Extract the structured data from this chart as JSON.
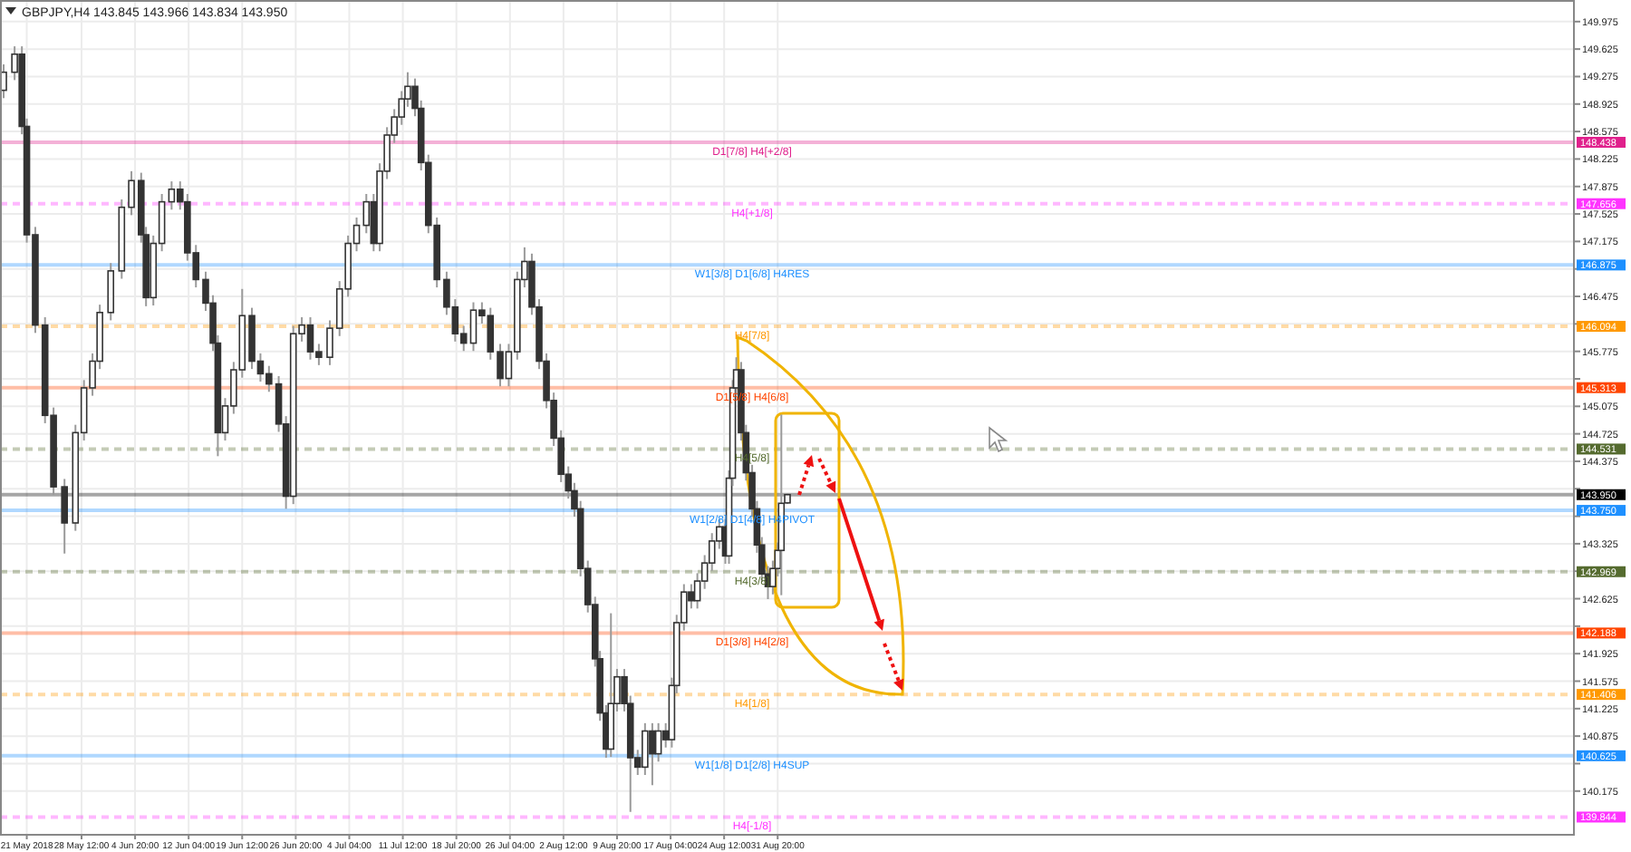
{
  "chart_data": {
    "type": "candlestick",
    "title": "GBPJPY,H4  143.845 143.966 143.834 143.950",
    "color": "#333333",
    "grid": true,
    "xlim": [
      "2018-05-17T08:00",
      "2018-12-19T00:00"
    ],
    "ylim": [
      139.63,
      150.25
    ],
    "xticks": [
      {
        "value": "2018-05-21T00:00",
        "label": "21 May 2018"
      },
      {
        "value": "2018-05-28T12:00",
        "label": "28 May 12:00"
      },
      {
        "value": "2018-06-04T20:00",
        "label": "4 Jun 20:00"
      },
      {
        "value": "2018-06-12T04:00",
        "label": "12 Jun 04:00"
      },
      {
        "value": "2018-06-19T12:00",
        "label": "19 Jun 12:00"
      },
      {
        "value": "2018-06-26T20:00",
        "label": "26 Jun 20:00"
      },
      {
        "value": "2018-07-04T04:00",
        "label": "4 Jul 04:00"
      },
      {
        "value": "2018-07-11T12:00",
        "label": "11 Jul 12:00"
      },
      {
        "value": "2018-07-18T20:00",
        "label": "18 Jul 20:00"
      },
      {
        "value": "2018-07-26T04:00",
        "label": "26 Jul 04:00"
      },
      {
        "value": "2018-08-02T12:00",
        "label": "2 Aug 12:00"
      },
      {
        "value": "2018-08-09T20:00",
        "label": "9 Aug 20:00"
      },
      {
        "value": "2018-08-17T04:00",
        "label": "17 Aug 04:00"
      },
      {
        "value": "2018-08-24T12:00",
        "label": "24 Aug 12:00"
      },
      {
        "value": "2018-08-31T20:00",
        "label": "31 Aug 20:00"
      }
    ],
    "yticks": [
      140.175,
      {
        "value": 140.525,
        "label": null
      },
      140.875,
      141.225,
      141.575,
      141.925,
      {
        "value": 142.275,
        "label": null
      },
      142.625,
      {
        "value": 142.975,
        "label": null
      },
      143.325,
      {
        "value": 143.675,
        "label": null
      },
      {
        "value": 144.025,
        "label": null
      },
      144.375,
      144.725,
      145.075,
      {
        "value": 145.425,
        "label": null
      },
      145.775,
      {
        "value": 146.125,
        "label": null
      },
      146.475,
      {
        "value": 146.825,
        "label": null
      },
      147.175,
      147.525,
      147.875,
      148.225,
      148.575,
      148.925,
      149.275,
      149.625,
      149.975
    ],
    "annotations": [
      "148.438",
      "147.656",
      "146.875",
      "146.094",
      "145.313",
      "144.531",
      "143.950",
      "143.750",
      "142.969",
      "142.188",
      "141.406",
      "140.625",
      "139.844"
    ],
    "x": [
      "2018-05-17T20:00",
      "2018-05-19T08:00",
      "2018-05-20T08:00",
      "2018-05-21T00:00",
      "2018-05-22T04:00",
      "2018-05-23T12:00",
      "2018-05-24T16:00",
      "2018-05-26T04:00",
      "2018-05-27T16:00",
      "2018-05-28T20:00",
      "2018-05-30T00:00",
      "2018-05-31T00:00",
      "2018-06-01T12:00",
      "2018-06-03T00:00",
      "2018-06-04T08:00",
      "2018-06-05T16:00",
      "2018-06-06T08:00",
      "2018-06-07T08:00",
      "2018-06-08T12:00",
      "2018-06-09T20:00",
      "2018-06-11T00:00",
      "2018-06-12T00:00",
      "2018-06-13T04:00",
      "2018-06-14T12:00",
      "2018-06-15T12:00",
      "2018-06-16T04:00",
      "2018-06-17T04:00",
      "2018-06-18T08:00",
      "2018-06-19T12:00",
      "2018-06-20T20:00",
      "2018-06-22T00:00",
      "2018-06-23T04:00",
      "2018-06-24T12:00",
      "2018-06-25T12:00",
      "2018-06-26T12:00",
      "2018-06-27T16:00",
      "2018-06-28T20:00",
      "2018-06-30T00:00",
      "2018-07-01T12:00",
      "2018-07-02T20:00",
      "2018-07-04T00:00",
      "2018-07-05T04:00",
      "2018-07-06T12:00",
      "2018-07-07T12:00",
      "2018-07-08T08:00",
      "2018-07-09T08:00",
      "2018-07-10T08:00",
      "2018-07-11T08:00",
      "2018-07-12T04:00",
      "2018-07-13T04:00",
      "2018-07-14T00:00",
      "2018-07-15T00:00",
      "2018-07-16T04:00",
      "2018-07-17T12:00",
      "2018-07-18T16:00",
      "2018-07-19T20:00",
      "2018-07-21T04:00",
      "2018-07-22T08:00",
      "2018-07-23T12:00",
      "2018-07-24T20:00",
      "2018-07-26T00:00",
      "2018-07-27T04:00",
      "2018-07-28T04:00",
      "2018-07-29T04:00",
      "2018-07-30T04:00",
      "2018-07-31T04:00",
      "2018-08-01T04:00",
      "2018-08-02T04:00",
      "2018-08-03T04:00",
      "2018-08-04T00:00",
      "2018-08-04T20:00",
      "2018-08-05T20:00",
      "2018-08-06T20:00",
      "2018-08-07T12:00",
      "2018-08-08T08:00",
      "2018-08-09T00:00",
      "2018-08-09T20:00",
      "2018-08-10T20:00",
      "2018-08-11T16:00",
      "2018-08-12T16:00",
      "2018-08-13T16:00",
      "2018-08-14T16:00",
      "2018-08-15T12:00",
      "2018-08-16T12:00",
      "2018-08-17T08:00",
      "2018-08-18T00:00",
      "2018-08-19T00:00",
      "2018-08-20T00:00",
      "2018-08-20T20:00",
      "2018-08-21T20:00",
      "2018-08-22T20:00",
      "2018-08-23T20:00",
      "2018-08-24T16:00",
      "2018-08-25T04:00",
      "2018-08-25T16:00",
      "2018-08-26T04:00",
      "2018-08-26T20:00",
      "2018-08-27T12:00",
      "2018-08-28T08:00",
      "2018-08-29T00:00",
      "2018-08-29T16:00",
      "2018-08-30T12:00",
      "2018-08-31T04:00",
      "2018-08-31T20:00",
      "2018-09-01T08:00",
      "2018-09-02T04:00"
    ],
    "ohlc": [
      [
        149.1,
        149.43,
        149.0,
        149.33
      ],
      [
        149.33,
        149.66,
        149.23,
        149.56
      ],
      [
        149.56,
        149.66,
        148.54,
        148.64
      ],
      [
        148.64,
        148.74,
        147.16,
        147.26
      ],
      [
        147.26,
        147.36,
        146.01,
        146.11
      ],
      [
        146.11,
        146.21,
        144.86,
        144.96
      ],
      [
        144.96,
        145.06,
        143.95,
        144.05
      ],
      [
        144.05,
        144.15,
        143.2,
        143.59
      ],
      [
        143.59,
        144.84,
        143.49,
        144.74
      ],
      [
        144.74,
        145.41,
        144.64,
        145.31
      ],
      [
        145.31,
        145.75,
        145.21,
        145.65
      ],
      [
        145.65,
        146.37,
        145.55,
        146.27
      ],
      [
        146.27,
        146.9,
        146.17,
        146.8
      ],
      [
        146.8,
        147.71,
        146.7,
        147.61
      ],
      [
        147.61,
        148.07,
        147.51,
        147.95
      ],
      [
        147.95,
        148.05,
        147.16,
        147.26
      ],
      [
        147.26,
        147.36,
        146.35,
        146.46
      ],
      [
        146.46,
        147.25,
        146.36,
        147.15
      ],
      [
        147.15,
        147.78,
        147.05,
        147.68
      ],
      [
        147.68,
        147.94,
        147.58,
        147.84
      ],
      [
        147.84,
        147.94,
        147.58,
        147.68
      ],
      [
        147.68,
        147.78,
        146.93,
        147.03
      ],
      [
        147.03,
        147.13,
        146.59,
        146.69
      ],
      [
        146.69,
        146.79,
        146.29,
        146.39
      ],
      [
        146.39,
        146.49,
        145.78,
        145.88
      ],
      [
        145.88,
        145.98,
        144.44,
        144.74
      ],
      [
        144.74,
        145.18,
        144.64,
        145.08
      ],
      [
        145.08,
        145.64,
        144.98,
        145.54
      ],
      [
        145.54,
        146.57,
        145.44,
        146.23
      ],
      [
        146.23,
        146.33,
        145.55,
        145.65
      ],
      [
        145.65,
        145.75,
        145.39,
        145.49
      ],
      [
        145.49,
        145.59,
        145.26,
        145.36
      ],
      [
        145.36,
        145.46,
        144.75,
        144.85
      ],
      [
        144.85,
        144.95,
        143.77,
        143.93
      ],
      [
        143.93,
        146.1,
        143.83,
        146.0
      ],
      [
        146.0,
        146.21,
        145.9,
        146.11
      ],
      [
        146.11,
        146.21,
        145.67,
        145.77
      ],
      [
        145.77,
        145.87,
        145.6,
        145.7
      ],
      [
        145.7,
        146.17,
        145.6,
        146.07
      ],
      [
        146.07,
        146.67,
        145.97,
        146.57
      ],
      [
        146.57,
        147.25,
        146.47,
        147.15
      ],
      [
        147.15,
        147.48,
        147.05,
        147.38
      ],
      [
        147.38,
        147.78,
        147.28,
        147.68
      ],
      [
        147.68,
        147.78,
        147.05,
        147.15
      ],
      [
        147.15,
        148.17,
        147.05,
        148.07
      ],
      [
        148.07,
        148.63,
        147.97,
        148.53
      ],
      [
        148.53,
        148.86,
        148.43,
        148.76
      ],
      [
        148.76,
        149.09,
        148.66,
        148.99
      ],
      [
        148.99,
        149.33,
        148.89,
        149.15
      ],
      [
        149.15,
        149.25,
        148.77,
        148.87
      ],
      [
        148.87,
        148.97,
        148.08,
        148.18
      ],
      [
        148.18,
        148.28,
        147.28,
        147.38
      ],
      [
        147.38,
        147.48,
        146.59,
        146.69
      ],
      [
        146.69,
        146.79,
        146.24,
        146.34
      ],
      [
        146.34,
        146.44,
        145.9,
        146.0
      ],
      [
        146.0,
        146.1,
        145.78,
        145.88
      ],
      [
        145.88,
        146.4,
        145.78,
        146.3
      ],
      [
        146.3,
        146.4,
        146.13,
        146.23
      ],
      [
        146.23,
        146.33,
        145.67,
        145.77
      ],
      [
        145.77,
        145.87,
        145.33,
        145.43
      ],
      [
        145.43,
        145.87,
        145.33,
        145.77
      ],
      [
        145.77,
        146.79,
        145.67,
        146.69
      ],
      [
        146.69,
        147.1,
        146.59,
        146.92
      ],
      [
        146.92,
        147.02,
        146.24,
        146.34
      ],
      [
        146.34,
        146.44,
        145.55,
        145.65
      ],
      [
        145.65,
        145.75,
        145.05,
        145.15
      ],
      [
        145.15,
        145.25,
        144.57,
        144.67
      ],
      [
        144.67,
        144.77,
        144.11,
        144.21
      ],
      [
        144.21,
        144.31,
        143.9,
        144.0
      ],
      [
        144.0,
        144.1,
        143.67,
        143.77
      ],
      [
        143.77,
        143.87,
        142.91,
        143.01
      ],
      [
        143.01,
        143.11,
        142.45,
        142.55
      ],
      [
        142.55,
        142.65,
        141.76,
        141.86
      ],
      [
        141.86,
        141.96,
        141.07,
        141.17
      ],
      [
        141.17,
        141.27,
        140.6,
        140.71
      ],
      [
        140.71,
        142.44,
        140.61,
        141.29
      ],
      [
        141.29,
        141.73,
        141.19,
        141.63
      ],
      [
        141.63,
        141.73,
        141.19,
        141.29
      ],
      [
        141.29,
        141.39,
        139.91,
        140.6
      ],
      [
        140.6,
        140.7,
        140.38,
        140.48
      ],
      [
        140.48,
        141.04,
        140.38,
        140.94
      ],
      [
        140.94,
        141.04,
        140.25,
        140.65
      ],
      [
        140.65,
        141.04,
        140.55,
        140.94
      ],
      [
        140.94,
        141.04,
        140.73,
        140.83
      ],
      [
        140.83,
        141.62,
        140.73,
        141.52
      ],
      [
        141.52,
        142.42,
        141.42,
        142.32
      ],
      [
        142.32,
        142.81,
        142.22,
        142.71
      ],
      [
        142.71,
        142.81,
        142.5,
        142.6
      ],
      [
        142.6,
        142.95,
        142.5,
        142.85
      ],
      [
        142.85,
        143.18,
        142.75,
        143.08
      ],
      [
        143.08,
        143.46,
        142.98,
        143.36
      ],
      [
        143.36,
        143.64,
        143.26,
        143.54
      ],
      [
        143.54,
        143.64,
        143.07,
        143.17
      ],
      [
        143.17,
        144.26,
        143.07,
        144.16
      ],
      [
        144.16,
        145.41,
        144.06,
        145.31
      ],
      [
        145.31,
        145.7,
        145.21,
        145.54
      ],
      [
        145.54,
        145.64,
        144.64,
        144.74
      ],
      [
        144.74,
        144.84,
        144.13,
        144.23
      ],
      [
        144.23,
        144.33,
        143.67,
        143.77
      ],
      [
        143.77,
        143.87,
        143.21,
        143.31
      ],
      [
        143.31,
        143.41,
        142.84,
        142.94
      ],
      [
        142.94,
        143.04,
        142.62,
        142.78
      ],
      [
        142.78,
        143.11,
        142.68,
        143.01
      ],
      [
        143.01,
        143.34,
        142.91,
        143.24
      ],
      [
        143.24,
        144.97,
        142.67,
        143.84
      ],
      [
        143.845,
        143.966,
        143.834,
        143.95
      ]
    ],
    "ref_lines": [
      {
        "axis": "y",
        "value": 148.438,
        "label": "D1[7/8] H4[+2/8]",
        "color": "#e0208c",
        "line_style": "solid"
      },
      {
        "axis": "y",
        "value": 147.656,
        "label": "H4[+1/8]",
        "color": "#ff33ff",
        "line_style": "dashed"
      },
      {
        "axis": "y",
        "value": 146.875,
        "label": "W1[3/8] D1[6/8] H4RES",
        "color": "#1e90ff",
        "line_style": "solid"
      },
      {
        "axis": "y",
        "value": 146.094,
        "label": "H4[7/8]",
        "color": "#ff9900",
        "line_style": "dashed"
      },
      {
        "axis": "y",
        "value": 145.313,
        "label": "D1[5/8] H4[6/8]",
        "color": "#ff4500",
        "line_style": "solid"
      },
      {
        "axis": "y",
        "value": 144.531,
        "label": "H4[5/8]",
        "color": "#556b2f",
        "line_style": "dashed"
      },
      {
        "axis": "y",
        "value": 143.95,
        "label": null,
        "color": "#000000",
        "line_style": "solid"
      },
      {
        "axis": "y",
        "value": 143.75,
        "label": "W1[2/8] D1[4/8] H4PIVOT",
        "color": "#1e90ff",
        "line_style": "solid"
      },
      {
        "axis": "y",
        "value": 142.969,
        "label": "H4[3/8]",
        "color": "#556b2f",
        "line_style": "dashed"
      },
      {
        "axis": "y",
        "value": 142.188,
        "label": "D1[3/8] H4[2/8]",
        "color": "#ff4500",
        "line_style": "solid"
      },
      {
        "axis": "y",
        "value": 141.406,
        "label": "H4[1/8]",
        "color": "#ff9900",
        "line_style": "dashed"
      },
      {
        "axis": "y",
        "value": 140.625,
        "label": "W1[1/8] D1[2/8] H4SUP",
        "color": "#1e90ff",
        "line_style": "solid"
      },
      {
        "axis": "y",
        "value": 139.844,
        "label": "H4[-1/8]",
        "color": "#ff33ff",
        "line_style": "dashed"
      }
    ]
  }
}
